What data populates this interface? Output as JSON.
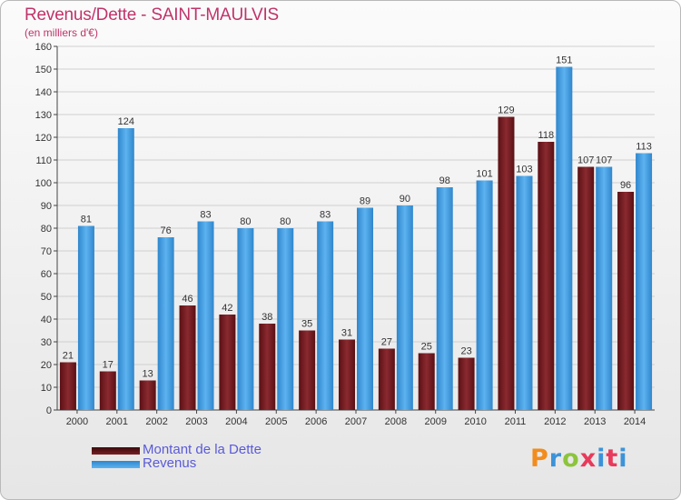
{
  "header": {
    "title": "Revenus/Dette - SAINT-MAULVIS",
    "subtitle": "(en milliers d'€)"
  },
  "legend": {
    "debt_label": "Montant de la Dette",
    "revenue_label": "Revenus"
  },
  "logo": {
    "text": "Proxiti"
  },
  "colors": {
    "title": "#c0336a",
    "debt": "#7a1f24",
    "revenue": "#4aa3e8",
    "legend_text": "#5a5ad8",
    "grid": "#d0d0d0"
  },
  "chart_data": {
    "type": "bar",
    "categories": [
      "2000",
      "2001",
      "2002",
      "2003",
      "2004",
      "2005",
      "2006",
      "2007",
      "2008",
      "2009",
      "2010",
      "2011",
      "2012",
      "2013",
      "2014"
    ],
    "series": [
      {
        "name": "Montant de la Dette",
        "values": [
          21,
          17,
          13,
          46,
          42,
          38,
          35,
          31,
          27,
          25,
          23,
          129,
          118,
          107,
          96
        ]
      },
      {
        "name": "Revenus",
        "values": [
          81,
          124,
          76,
          83,
          80,
          80,
          83,
          89,
          90,
          98,
          101,
          103,
          151,
          107,
          113
        ]
      }
    ],
    "title": "Revenus/Dette - SAINT-MAULVIS",
    "ylabel": "(en milliers d'€)",
    "ylim": [
      0,
      160
    ],
    "yticks": [
      0,
      10,
      20,
      30,
      40,
      50,
      60,
      70,
      80,
      90,
      100,
      110,
      120,
      130,
      140,
      150,
      160
    ],
    "grid": true,
    "legend": "bottom-left"
  }
}
